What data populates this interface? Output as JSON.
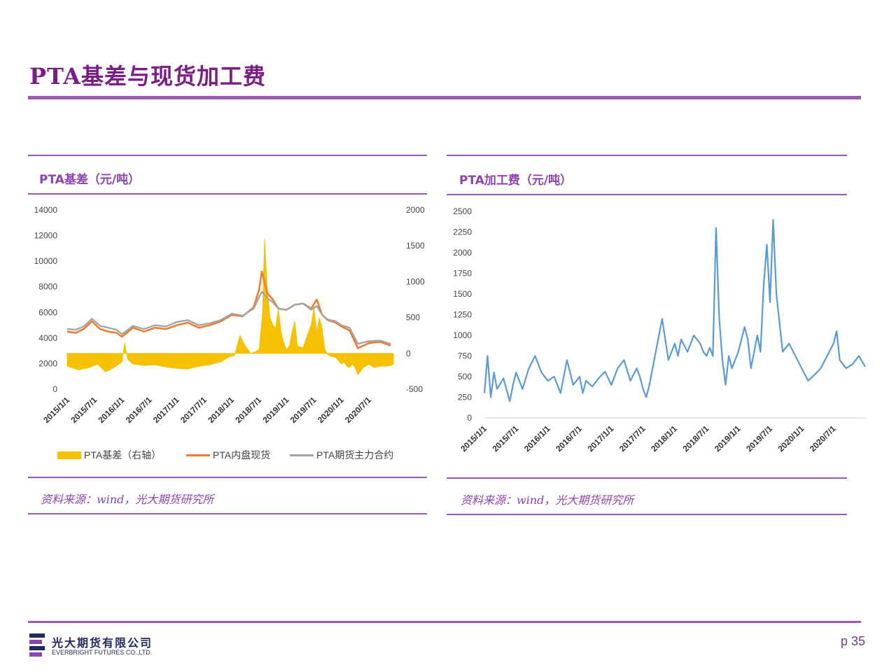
{
  "page": {
    "title": "PTA基差与现货加工费",
    "page_number": "p 35",
    "accent_color": "#9b59b6",
    "title_color": "#7a1e86"
  },
  "logo": {
    "name_cn": "光大期货有限公司",
    "name_en": "EVERBRIGHT FUTURES CO.,LTD."
  },
  "left_panel": {
    "title": "PTA基差（元/吨）",
    "source": "资料来源：wind，光大期货研究所"
  },
  "right_panel": {
    "title": "PTA加工费（元/吨）",
    "source": "资料来源：wind，光大期货研究所"
  },
  "chart_data": [
    {
      "type": "line",
      "secondary_type": "area",
      "x_labels": [
        "2015/1/1",
        "2015/7/1",
        "2016/1/1",
        "2016/7/1",
        "2017/1/1",
        "2017/7/1",
        "2018/1/1",
        "2018/7/1",
        "2019/1/1",
        "2019/7/1",
        "2020/1/1",
        "2020/7/1"
      ],
      "y_left": {
        "ticks": [
          0,
          2000,
          4000,
          6000,
          8000,
          10000,
          12000,
          14000
        ],
        "ylim": [
          0,
          14000
        ]
      },
      "y_right": {
        "ticks": [
          -500,
          0,
          500,
          1000,
          1500,
          2000
        ],
        "ylim": [
          -500,
          2000
        ]
      },
      "legend_position": "bottom",
      "series": [
        {
          "name": "PTA基差（右轴）",
          "axis": "right",
          "style": "area",
          "color": "#f6c200",
          "x": [
            2015.0,
            2015.2,
            2015.4,
            2015.55,
            2015.7,
            2015.85,
            2016.0,
            2016.05,
            2016.1,
            2016.2,
            2016.4,
            2016.6,
            2016.8,
            2017.0,
            2017.2,
            2017.4,
            2017.6,
            2017.8,
            2017.95,
            2018.05,
            2018.15,
            2018.25,
            2018.35,
            2018.45,
            2018.5,
            2018.53,
            2018.56,
            2018.6,
            2018.65,
            2018.7,
            2018.75,
            2018.8,
            2018.85,
            2018.9,
            2018.95,
            2019.0,
            2019.05,
            2019.1,
            2019.15,
            2019.2,
            2019.3,
            2019.4,
            2019.45,
            2019.5,
            2019.55,
            2019.6,
            2019.65,
            2019.7,
            2019.75,
            2019.8,
            2019.9,
            2020.0,
            2020.05,
            2020.1,
            2020.15,
            2020.2,
            2020.25,
            2020.3,
            2020.4,
            2020.5,
            2020.6,
            2020.7,
            2020.8,
            2020.9,
            2020.95
          ],
          "y": [
            -180,
            -230,
            -200,
            -150,
            -260,
            -200,
            -120,
            150,
            -80,
            -150,
            -170,
            -160,
            -190,
            -210,
            -220,
            -180,
            -160,
            -120,
            -50,
            -30,
            250,
            100,
            0,
            30,
            60,
            300,
            550,
            1600,
            900,
            500,
            400,
            350,
            620,
            300,
            150,
            50,
            100,
            300,
            450,
            100,
            80,
            300,
            400,
            650,
            300,
            500,
            350,
            50,
            -20,
            -40,
            -60,
            -150,
            -120,
            -180,
            -200,
            -150,
            -200,
            -300,
            -200,
            -150,
            -200,
            -180,
            -180,
            -170,
            -150
          ]
        },
        {
          "name": "PTA内盘现货",
          "axis": "left",
          "style": "line",
          "color": "#ed7d31",
          "x": [
            2015.0,
            2015.15,
            2015.3,
            2015.45,
            2015.6,
            2015.75,
            2015.9,
            2016.0,
            2016.2,
            2016.4,
            2016.6,
            2016.8,
            2017.0,
            2017.2,
            2017.4,
            2017.6,
            2017.8,
            2018.0,
            2018.2,
            2018.4,
            2018.5,
            2018.55,
            2018.6,
            2018.65,
            2018.75,
            2018.85,
            2019.0,
            2019.15,
            2019.3,
            2019.45,
            2019.55,
            2019.65,
            2019.75,
            2019.9,
            2020.0,
            2020.15,
            2020.3,
            2020.5,
            2020.7,
            2020.9
          ],
          "y": [
            4500,
            4400,
            4700,
            5300,
            4700,
            4500,
            4400,
            4100,
            4800,
            4500,
            4800,
            4700,
            5000,
            5200,
            4800,
            5000,
            5300,
            5800,
            5700,
            6400,
            7800,
            9200,
            8300,
            7500,
            7000,
            6300,
            6200,
            6600,
            6700,
            6300,
            7000,
            5800,
            5400,
            5200,
            4900,
            4600,
            3200,
            3600,
            3700,
            3400
          ]
        },
        {
          "name": "PTA期货主力合约",
          "axis": "left",
          "style": "line",
          "color": "#a5a5a5",
          "x": [
            2015.0,
            2015.15,
            2015.3,
            2015.45,
            2015.6,
            2015.75,
            2015.9,
            2016.0,
            2016.2,
            2016.4,
            2016.6,
            2016.8,
            2017.0,
            2017.2,
            2017.4,
            2017.6,
            2017.8,
            2018.0,
            2018.2,
            2018.4,
            2018.5,
            2018.55,
            2018.6,
            2018.65,
            2018.75,
            2018.85,
            2019.0,
            2019.15,
            2019.3,
            2019.45,
            2019.55,
            2019.65,
            2019.75,
            2019.9,
            2020.0,
            2020.15,
            2020.3,
            2020.5,
            2020.7,
            2020.9
          ],
          "y": [
            4700,
            4650,
            4900,
            5500,
            4950,
            4800,
            4650,
            4300,
            4950,
            4700,
            5000,
            4900,
            5250,
            5400,
            5000,
            5150,
            5400,
            5900,
            5750,
            6300,
            7200,
            7600,
            7400,
            7100,
            6800,
            6300,
            6200,
            6600,
            6700,
            6200,
            6500,
            5800,
            5450,
            5300,
            5000,
            4800,
            3550,
            3750,
            3800,
            3550
          ]
        }
      ]
    },
    {
      "type": "line",
      "x_labels": [
        "2015/1/1",
        "2015/7/1",
        "2016/1/1",
        "2016/7/1",
        "2017/1/1",
        "2017/7/1",
        "2018/1/1",
        "2018/7/1",
        "2019/1/1",
        "2019/7/1",
        "2020/1/1",
        "2020/7/1"
      ],
      "y": {
        "ticks": [
          0,
          250,
          500,
          750,
          1000,
          1250,
          1500,
          1750,
          2000,
          2250,
          2500
        ],
        "ylim": [
          0,
          2500
        ]
      },
      "series": [
        {
          "color": "#5b9bd5",
          "x": [
            2015.0,
            2015.05,
            2015.1,
            2015.15,
            2015.2,
            2015.3,
            2015.4,
            2015.45,
            2015.5,
            2015.6,
            2015.7,
            2015.8,
            2015.9,
            2016.0,
            2016.1,
            2016.2,
            2016.3,
            2016.4,
            2016.5,
            2016.55,
            2016.6,
            2016.7,
            2016.8,
            2016.9,
            2017.0,
            2017.1,
            2017.2,
            2017.3,
            2017.4,
            2017.45,
            2017.5,
            2017.55,
            2017.6,
            2017.7,
            2017.8,
            2017.9,
            2018.0,
            2018.05,
            2018.1,
            2018.2,
            2018.3,
            2018.4,
            2018.45,
            2018.5,
            2018.55,
            2018.6,
            2018.65,
            2018.7,
            2018.75,
            2018.8,
            2018.85,
            2018.9,
            2019.0,
            2019.1,
            2019.15,
            2019.2,
            2019.3,
            2019.35,
            2019.4,
            2019.45,
            2019.5,
            2019.55,
            2019.6,
            2019.7,
            2019.8,
            2019.9,
            2020.0,
            2020.1,
            2020.2,
            2020.3,
            2020.4,
            2020.5,
            2020.55,
            2020.6,
            2020.7,
            2020.8,
            2020.9,
            2021.0
          ],
          "y": [
            300,
            750,
            250,
            550,
            350,
            480,
            200,
            400,
            550,
            350,
            600,
            750,
            550,
            450,
            500,
            300,
            700,
            400,
            500,
            300,
            450,
            380,
            480,
            560,
            400,
            600,
            700,
            450,
            600,
            500,
            350,
            250,
            400,
            800,
            1200,
            700,
            900,
            750,
            950,
            800,
            1000,
            900,
            800,
            750,
            850,
            750,
            2300,
            1200,
            700,
            400,
            750,
            600,
            800,
            1100,
            950,
            600,
            1000,
            800,
            1600,
            2100,
            1400,
            2400,
            1500,
            800,
            900,
            750,
            600,
            450,
            520,
            600,
            750,
            900,
            1050,
            700,
            600,
            650,
            750,
            620
          ]
        }
      ]
    }
  ]
}
